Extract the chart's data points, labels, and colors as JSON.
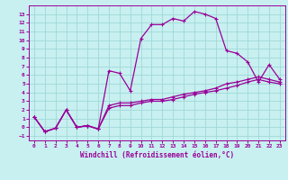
{
  "xlabel": "Windchill (Refroidissement éolien,°C)",
  "bg_color": "#c8f0f0",
  "line_color": "#990099",
  "grid_color": "#a0d8d8",
  "xlim": [
    -0.5,
    23.5
  ],
  "ylim": [
    -1.5,
    14.0
  ],
  "xticks": [
    0,
    1,
    2,
    3,
    4,
    5,
    6,
    7,
    8,
    9,
    10,
    11,
    12,
    13,
    14,
    15,
    16,
    17,
    18,
    19,
    20,
    21,
    22,
    23
  ],
  "yticks": [
    -1,
    0,
    1,
    2,
    3,
    4,
    5,
    6,
    7,
    8,
    9,
    10,
    11,
    12,
    13
  ],
  "line1_x": [
    0,
    1,
    2,
    3,
    4,
    5,
    6,
    7,
    8,
    9,
    10,
    11,
    12,
    13,
    14,
    15,
    16,
    17,
    18,
    19,
    20,
    21,
    22,
    23
  ],
  "line1_y": [
    1.2,
    -0.5,
    -0.1,
    2.0,
    0.0,
    0.2,
    -0.2,
    6.5,
    6.2,
    4.2,
    10.2,
    11.8,
    11.8,
    12.5,
    12.2,
    13.3,
    13.0,
    12.5,
    8.8,
    8.5,
    7.5,
    5.2,
    7.2,
    5.5
  ],
  "line2_x": [
    0,
    1,
    2,
    3,
    4,
    5,
    6,
    7,
    8,
    9,
    10,
    11,
    12,
    13,
    14,
    15,
    16,
    17,
    18,
    19,
    20,
    21,
    22,
    23
  ],
  "line2_y": [
    1.2,
    -0.5,
    -0.1,
    2.0,
    0.0,
    0.2,
    -0.2,
    2.5,
    2.8,
    2.8,
    3.0,
    3.2,
    3.2,
    3.5,
    3.8,
    4.0,
    4.2,
    4.5,
    5.0,
    5.2,
    5.5,
    5.8,
    5.5,
    5.2
  ],
  "line3_x": [
    0,
    1,
    2,
    3,
    4,
    5,
    6,
    7,
    8,
    9,
    10,
    11,
    12,
    13,
    14,
    15,
    16,
    17,
    18,
    19,
    20,
    21,
    22,
    23
  ],
  "line3_y": [
    1.2,
    -0.5,
    -0.1,
    2.0,
    0.0,
    0.2,
    -0.2,
    2.2,
    2.5,
    2.5,
    2.8,
    3.0,
    3.0,
    3.2,
    3.5,
    3.8,
    4.0,
    4.2,
    4.5,
    4.8,
    5.2,
    5.5,
    5.2,
    5.0
  ]
}
